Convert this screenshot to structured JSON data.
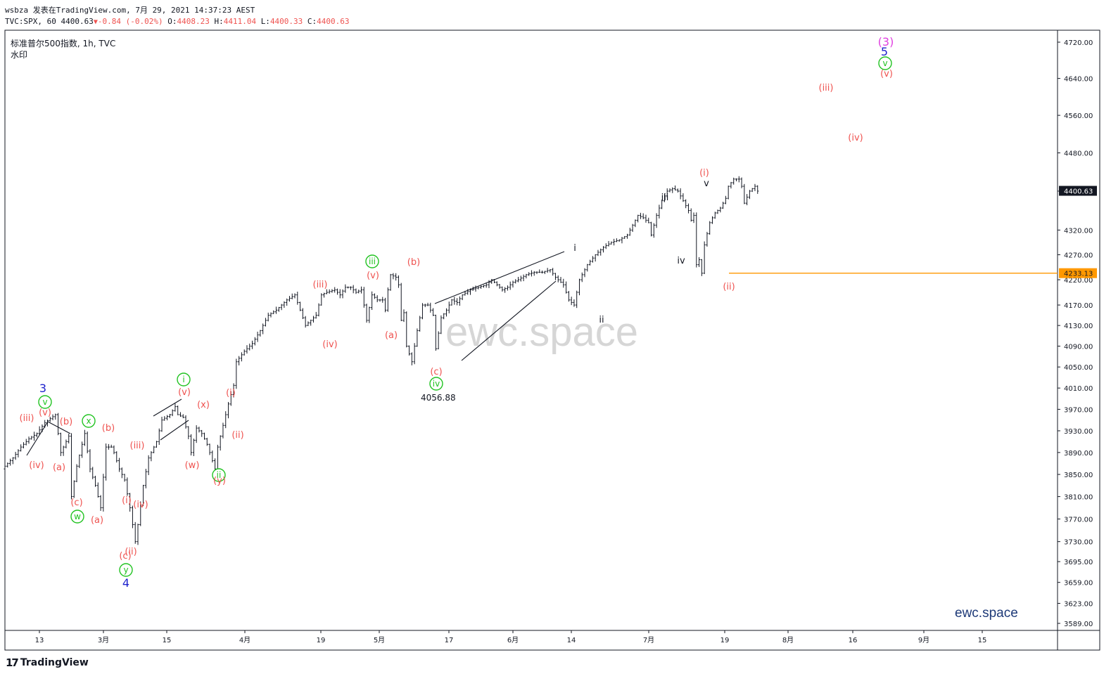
{
  "header": {
    "line1": "wsbza 发表在TradingView.com, 7月 29, 2021 14:37:23 AEST",
    "symbol": "TVC:SPX, 60",
    "last": "4400.63",
    "change": "-0.84 (-0.02%)",
    "o_label": "O:",
    "o": "4408.23",
    "h_label": "H:",
    "h": "4411.04",
    "l_label": "L:",
    "l": "4400.33",
    "c_label": "C:",
    "c": "4400.63"
  },
  "legend": {
    "title": "标准普尔500指数, 1h, TVC",
    "watermark_label": "水印"
  },
  "watermark_text": "ewc.space",
  "brand_text": "ewc.space",
  "footer_logo": "TradingView",
  "colors": {
    "up": "#131722",
    "red": "#ef5350",
    "green": "#22c322",
    "blue": "#1e22cc",
    "magenta": "#e040e0",
    "orange": "#ff9800",
    "price_label_bg": "#131722"
  },
  "chart_data": {
    "type": "candlestick",
    "y_axis": {
      "ticks": [
        4720.0,
        4640.0,
        4560.0,
        4480.0,
        4400.0,
        4320.0,
        4270.0,
        4220.0,
        4170.0,
        4130.0,
        4090.0,
        4050.0,
        4010.0,
        3970.0,
        3930.0,
        3890.0,
        3850.0,
        3810.0,
        3770.0,
        3730.0,
        3695.0,
        3659.0,
        3623.0,
        3589.0
      ],
      "scale": "log"
    },
    "x_axis": {
      "ticks": [
        "13",
        "3月",
        "15",
        "4月",
        "19",
        "5月",
        "17",
        "6月",
        "14",
        "7月",
        "19",
        "8月",
        "16",
        "9月",
        "15"
      ]
    },
    "price_labels": {
      "last": "4400.63",
      "line": "4233.13"
    },
    "horizontal_line": 4233.13,
    "annotation_value": "4056.88",
    "price_path": [
      [
        0,
        3860
      ],
      [
        4,
        3880
      ],
      [
        7,
        3900
      ],
      [
        10,
        3915
      ],
      [
        13,
        3925
      ],
      [
        16,
        3945
      ],
      [
        20,
        3960
      ],
      [
        22,
        3890
      ],
      [
        25,
        3920
      ],
      [
        26,
        3810
      ],
      [
        28,
        3865
      ],
      [
        31,
        3925
      ],
      [
        33,
        3860
      ],
      [
        35,
        3830
      ],
      [
        37,
        3790
      ],
      [
        39,
        3900
      ],
      [
        41,
        3900
      ],
      [
        42,
        3890
      ],
      [
        44,
        3860
      ],
      [
        46,
        3840
      ],
      [
        48,
        3790
      ],
      [
        50,
        3730
      ],
      [
        51,
        3760
      ],
      [
        53,
        3830
      ],
      [
        55,
        3880
      ],
      [
        58,
        3910
      ],
      [
        60,
        3950
      ],
      [
        63,
        3960
      ],
      [
        65,
        3975
      ],
      [
        66,
        3960
      ],
      [
        68,
        3955
      ],
      [
        70,
        3920
      ],
      [
        71,
        3890
      ],
      [
        73,
        3935
      ],
      [
        75,
        3925
      ],
      [
        77,
        3905
      ],
      [
        79,
        3875
      ],
      [
        80,
        3860
      ],
      [
        81,
        3900
      ],
      [
        83,
        3940
      ],
      [
        85,
        3980
      ],
      [
        87,
        4015
      ],
      [
        88,
        4060
      ],
      [
        91,
        4080
      ],
      [
        94,
        4095
      ],
      [
        97,
        4120
      ],
      [
        100,
        4150
      ],
      [
        103,
        4160
      ],
      [
        106,
        4175
      ],
      [
        107,
        4180
      ],
      [
        110,
        4190
      ],
      [
        112,
        4160
      ],
      [
        114,
        4130
      ],
      [
        116,
        4140
      ],
      [
        118,
        4150
      ],
      [
        120,
        4190
      ],
      [
        122,
        4195
      ],
      [
        125,
        4200
      ],
      [
        127,
        4190
      ],
      [
        129,
        4205
      ],
      [
        131,
        4205
      ],
      [
        133,
        4195
      ],
      [
        135,
        4200
      ],
      [
        137,
        4140
      ],
      [
        139,
        4190
      ],
      [
        141,
        4180
      ],
      [
        143,
        4180
      ],
      [
        144,
        4160
      ],
      [
        145,
        4200
      ],
      [
        146,
        4230
      ],
      [
        148,
        4225
      ],
      [
        149,
        4210
      ],
      [
        150,
        4140
      ],
      [
        151,
        4155
      ],
      [
        152,
        4090
      ],
      [
        153,
        4075
      ],
      [
        154,
        4060
      ],
      [
        156,
        4120
      ],
      [
        158,
        4170
      ],
      [
        160,
        4170
      ],
      [
        162,
        4150
      ],
      [
        163,
        4085
      ],
      [
        165,
        4145
      ],
      [
        167,
        4160
      ],
      [
        169,
        4180
      ],
      [
        171,
        4175
      ],
      [
        173,
        4190
      ],
      [
        176,
        4200
      ],
      [
        179,
        4205
      ],
      [
        182,
        4210
      ],
      [
        184,
        4220
      ],
      [
        186,
        4210
      ],
      [
        188,
        4200
      ],
      [
        190,
        4205
      ],
      [
        192,
        4215
      ],
      [
        194,
        4220
      ],
      [
        197,
        4230
      ],
      [
        200,
        4235
      ],
      [
        203,
        4235
      ],
      [
        206,
        4240
      ],
      [
        208,
        4225
      ],
      [
        211,
        4210
      ],
      [
        213,
        4180
      ],
      [
        215,
        4170
      ],
      [
        217,
        4220
      ],
      [
        220,
        4250
      ],
      [
        223,
        4270
      ],
      [
        226,
        4285
      ],
      [
        229,
        4295
      ],
      [
        232,
        4300
      ],
      [
        235,
        4310
      ],
      [
        237,
        4330
      ],
      [
        239,
        4350
      ],
      [
        241,
        4345
      ],
      [
        243,
        4335
      ],
      [
        244,
        4310
      ],
      [
        246,
        4350
      ],
      [
        248,
        4380
      ],
      [
        250,
        4400
      ],
      [
        252,
        4405
      ],
      [
        254,
        4400
      ],
      [
        256,
        4380
      ],
      [
        258,
        4360
      ],
      [
        259,
        4340
      ],
      [
        260,
        4350
      ],
      [
        261,
        4250
      ],
      [
        262,
        4260
      ],
      [
        263,
        4233
      ],
      [
        264,
        4290
      ],
      [
        266,
        4335
      ],
      [
        268,
        4355
      ],
      [
        270,
        4365
      ],
      [
        272,
        4385
      ],
      [
        273,
        4410
      ],
      [
        275,
        4425
      ],
      [
        277,
        4425
      ],
      [
        278,
        4410
      ],
      [
        279,
        4375
      ],
      [
        281,
        4400
      ],
      [
        283,
        4410
      ],
      [
        284,
        4400
      ]
    ],
    "wave_labels": [
      {
        "text": "3",
        "color": "blue"
      },
      {
        "text": "v",
        "color": "green",
        "circled": true
      },
      {
        "text": "(iii)",
        "color": "red"
      },
      {
        "text": "(v)",
        "color": "red"
      },
      {
        "text": "(b)",
        "color": "red"
      },
      {
        "text": "(iv)",
        "color": "red"
      },
      {
        "text": "(a)",
        "color": "red"
      },
      {
        "text": "(c)",
        "color": "red"
      },
      {
        "text": "w",
        "color": "green",
        "circled": true
      },
      {
        "text": "x",
        "color": "green",
        "circled": true
      },
      {
        "text": "(b)",
        "color": "red"
      },
      {
        "text": "(a)",
        "color": "red"
      },
      {
        "text": "(iii)",
        "color": "red"
      },
      {
        "text": "(i)",
        "color": "red"
      },
      {
        "text": "(iv)",
        "color": "red"
      },
      {
        "text": "(ii)",
        "color": "red"
      },
      {
        "text": "(c)",
        "color": "red"
      },
      {
        "text": "y",
        "color": "green",
        "circled": true
      },
      {
        "text": "4",
        "color": "blue"
      },
      {
        "text": "i",
        "color": "green",
        "circled": true
      },
      {
        "text": "(v)",
        "color": "red"
      },
      {
        "text": "(x)",
        "color": "red"
      },
      {
        "text": "(w)",
        "color": "red"
      },
      {
        "text": "(i)",
        "color": "red"
      },
      {
        "text": "(ii)",
        "color": "red"
      },
      {
        "text": "ii",
        "color": "green",
        "circled": true
      },
      {
        "text": "(y)",
        "color": "red"
      },
      {
        "text": "(iii)",
        "color": "red"
      },
      {
        "text": "(iv)",
        "color": "red"
      },
      {
        "text": "iii",
        "color": "green",
        "circled": true
      },
      {
        "text": "(v)",
        "color": "red"
      },
      {
        "text": "(a)",
        "color": "red"
      },
      {
        "text": "(b)",
        "color": "red"
      },
      {
        "text": "(c)",
        "color": "red"
      },
      {
        "text": "iv",
        "color": "green",
        "circled": true
      },
      {
        "text": "i",
        "color": "black"
      },
      {
        "text": "ii",
        "color": "black"
      },
      {
        "text": "iii",
        "color": "black"
      },
      {
        "text": "iv",
        "color": "black"
      },
      {
        "text": "v",
        "color": "black"
      },
      {
        "text": "(i)",
        "color": "red"
      },
      {
        "text": "(ii)",
        "color": "red"
      },
      {
        "text": "(iii)",
        "color": "red"
      },
      {
        "text": "(iv)",
        "color": "red"
      },
      {
        "text": "(3)",
        "color": "magenta"
      },
      {
        "text": "5",
        "color": "blue"
      },
      {
        "text": "v",
        "color": "green",
        "circled": true
      },
      {
        "text": "(v)",
        "color": "red"
      }
    ]
  }
}
